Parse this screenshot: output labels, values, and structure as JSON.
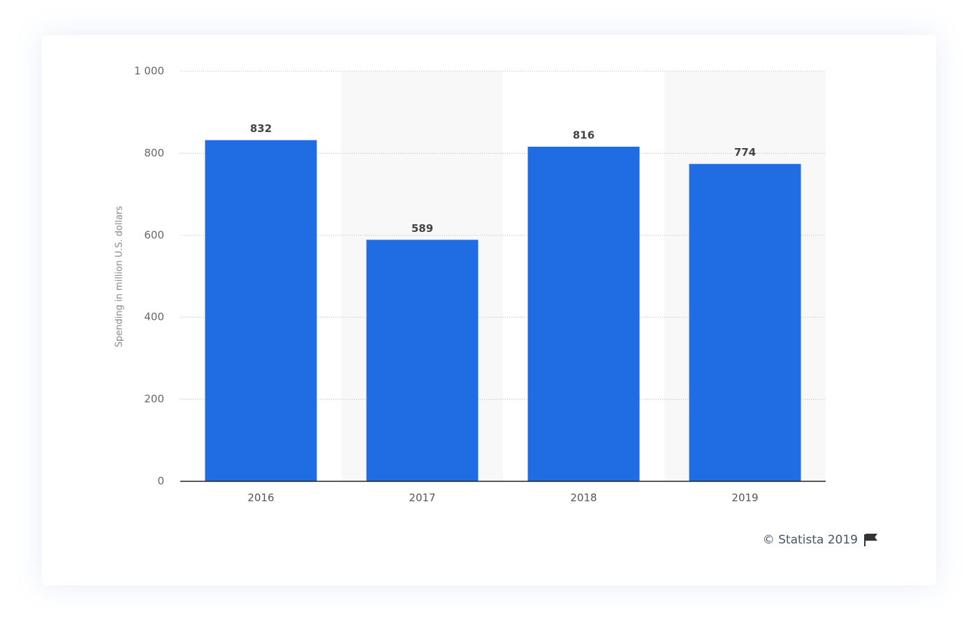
{
  "chart_data": {
    "type": "bar",
    "y_label": "Spending in million U.S. dollars",
    "source": "© Statista 2019",
    "categories": [
      "2016",
      "2017",
      "2018",
      "2019"
    ],
    "values": [
      832,
      589,
      816,
      774
    ],
    "color": "#1f6ce3",
    "ylim": [
      0,
      1000
    ],
    "yticks": [
      0,
      200,
      400,
      600,
      800,
      {
        "value": 1000,
        "label": "1 000"
      }
    ],
    "grid": true
  }
}
